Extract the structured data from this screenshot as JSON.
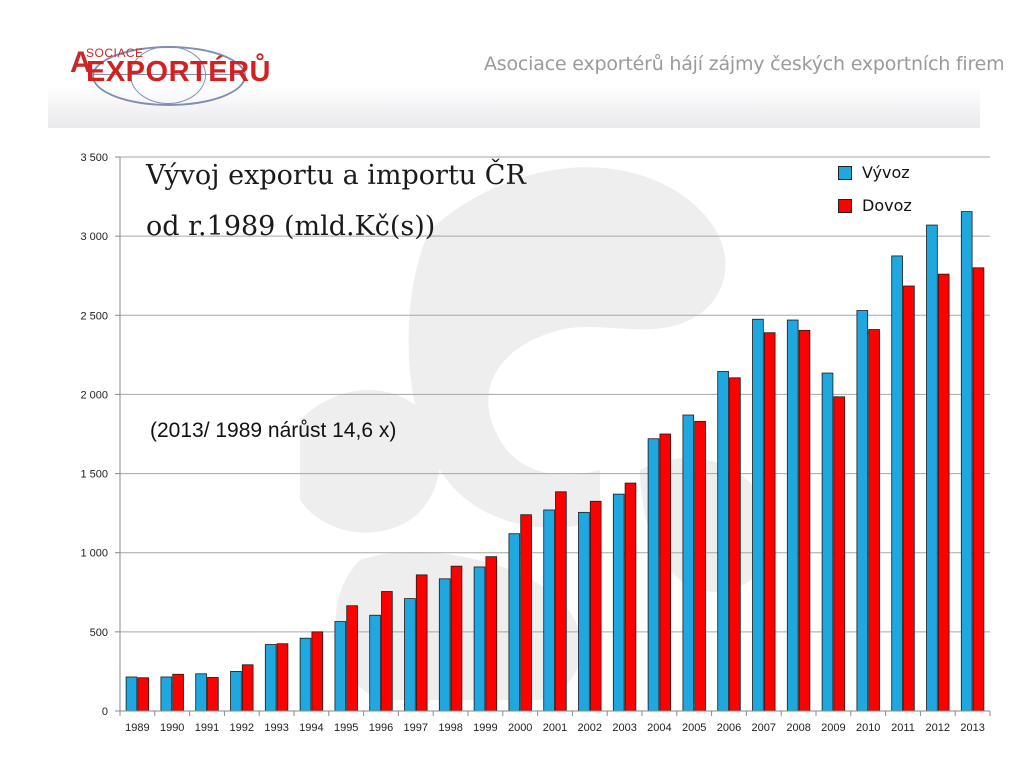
{
  "header": {
    "logo_small": "SOCIACE",
    "logo_a": "A",
    "logo_main": "EXPORTÉRŮ",
    "tagline": "Asociace exportérů hájí zájmy českých exportních firem"
  },
  "chart_data": {
    "type": "bar",
    "title_line1": "Vývoj exportu a importu ČR",
    "title_line2": "od r.1989 (mld.Kč(s))",
    "annotation": "(2013/ 1989 nárůst 14,6 x)",
    "categories": [
      "1989",
      "1990",
      "1991",
      "1992",
      "1993",
      "1994",
      "1995",
      "1996",
      "1997",
      "1998",
      "1999",
      "2000",
      "2001",
      "2002",
      "2003",
      "2004",
      "2005",
      "2006",
      "2007",
      "2008",
      "2009",
      "2010",
      "2011",
      "2012",
      "2013"
    ],
    "series": [
      {
        "name": "Vývoz",
        "color": "#1fa8e0",
        "values": [
          215,
          215,
          235,
          250,
          420,
          460,
          565,
          605,
          710,
          835,
          910,
          1120,
          1270,
          1255,
          1370,
          1720,
          1870,
          2145,
          2475,
          2470,
          2135,
          2530,
          2875,
          3070,
          3155
        ]
      },
      {
        "name": "Dovoz",
        "color": "#ff0000",
        "values": [
          210,
          232,
          212,
          292,
          425,
          500,
          665,
          755,
          860,
          915,
          975,
          1240,
          1385,
          1325,
          1440,
          1750,
          1830,
          2105,
          2390,
          2405,
          1985,
          2410,
          2685,
          2760,
          2800
        ]
      }
    ],
    "ylim": [
      0,
      3500
    ],
    "yticks": [
      0,
      500,
      1000,
      1500,
      2000,
      2500,
      3000,
      3500
    ],
    "ytick_labels": [
      "0",
      "500",
      "1 000",
      "1 500",
      "2 000",
      "2 500",
      "3 000",
      "3 500"
    ],
    "grid": true,
    "legend_position": "top-right"
  }
}
